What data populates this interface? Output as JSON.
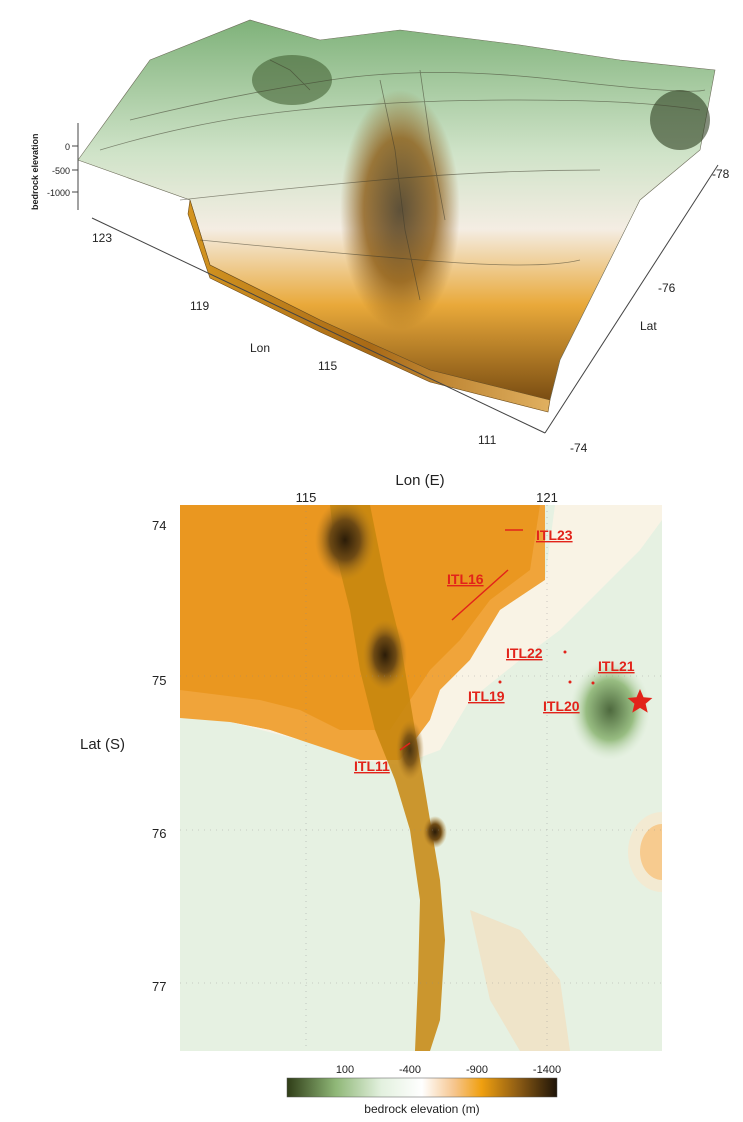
{
  "surface_3d": {
    "z_axis_label": "bedrock elevation",
    "z_ticks": [
      "0",
      "-500",
      "-1000"
    ],
    "lon_label": "Lon",
    "lon_ticks": [
      "123",
      "119",
      "115",
      "111"
    ],
    "lat_label": "Lat",
    "lat_ticks": [
      "-78",
      "-76",
      "-74"
    ]
  },
  "map": {
    "x_label": "Lon (E)",
    "x_ticks": [
      "115",
      "121"
    ],
    "y_label": "Lat (S)",
    "y_ticks": [
      "74",
      "75",
      "76",
      "77"
    ],
    "sites": [
      {
        "name": "ITL23"
      },
      {
        "name": "ITL16"
      },
      {
        "name": "ITL22"
      },
      {
        "name": "ITL21"
      },
      {
        "name": "ITL19"
      },
      {
        "name": "ITL20"
      },
      {
        "name": "ITL11"
      }
    ],
    "star_marker": "star-icon",
    "colors": {
      "label": "#e2231a"
    }
  },
  "colorbar": {
    "title": "bedrock elevation (m)",
    "ticks": [
      "100",
      "-400",
      "-900",
      "-1400"
    ],
    "stops": [
      "#2f3d17",
      "#8fb777",
      "#e3f1df",
      "#ffffff",
      "#f6c58d",
      "#f0a010",
      "#8a5a14",
      "#1e1408"
    ]
  }
}
